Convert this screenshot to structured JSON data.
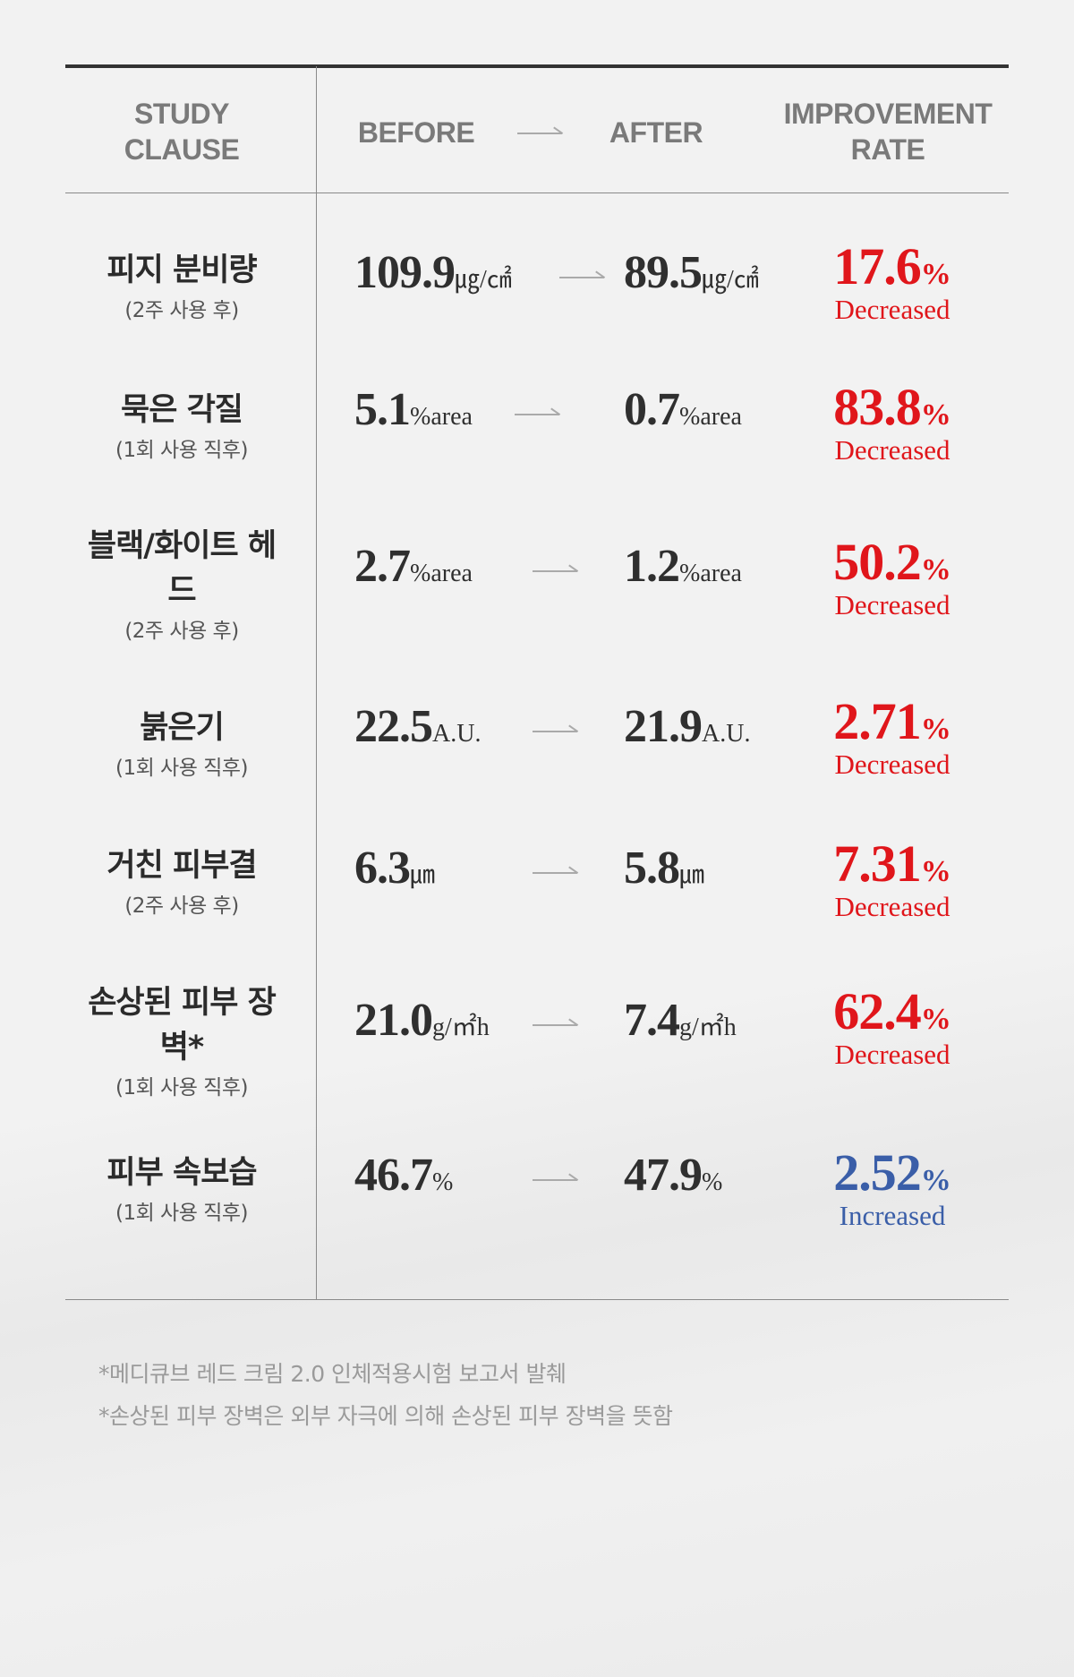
{
  "header": {
    "study": "STUDY CLAUSE",
    "before": "BEFORE",
    "after": "AFTER",
    "rate": "IMPROVEMENT RATE"
  },
  "colors": {
    "decrease": "#e0161b",
    "increase": "#3a5ea8"
  },
  "rows": [
    {
      "title": "피지 분비량",
      "sub": "(2주 사용 후)",
      "before": "109.9",
      "after": "89.5",
      "unit": "㎍/㎠",
      "rate": "17.6",
      "pct": "%",
      "direction": "Decreased"
    },
    {
      "title": "묵은 각질",
      "sub": "(1회 사용 직후)",
      "before": "5.1",
      "after": "0.7",
      "unit": "%area",
      "rate": "83.8",
      "pct": "%",
      "direction": "Decreased"
    },
    {
      "title": "블랙/화이트 헤드",
      "sub": "(2주 사용 후)",
      "before": "2.7",
      "after": "1.2",
      "unit": "%area",
      "rate": "50.2",
      "pct": "%",
      "direction": "Decreased"
    },
    {
      "title": "붉은기",
      "sub": "(1회 사용 직후)",
      "before": "22.5",
      "after": "21.9",
      "unit": "A.U.",
      "rate": "2.71",
      "pct": "%",
      "direction": "Decreased"
    },
    {
      "title": "거친 피부결",
      "sub": "(2주 사용 후)",
      "before": "6.3",
      "after": "5.8",
      "unit": "㎛",
      "rate": "7.31",
      "pct": "%",
      "direction": "Decreased"
    },
    {
      "title": "손상된 피부 장벽*",
      "sub": "(1회 사용 직후)",
      "before": "21.0",
      "after": "7.4",
      "unit": "g/㎡h",
      "rate": "62.4",
      "pct": "%",
      "direction": "Decreased"
    },
    {
      "title": "피부 속보습",
      "sub": "(1회 사용 직후)",
      "before": "46.7",
      "after": "47.9",
      "unit": "%",
      "rate": "2.52",
      "pct": "%",
      "direction": "Increased"
    }
  ],
  "notes": [
    "*메디큐브 레드 크림 2.0 인체적용시험 보고서 발췌",
    "*손상된 피부 장벽은 외부 자극에 의해 손상된 피부 장벽을 뜻함"
  ]
}
